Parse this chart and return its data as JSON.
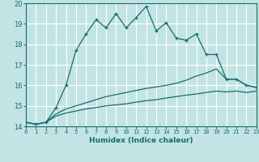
{
  "title": "",
  "xlabel": "Humidex (Indice chaleur)",
  "xlim": [
    0,
    23
  ],
  "ylim": [
    14,
    20
  ],
  "xticks": [
    0,
    1,
    2,
    3,
    4,
    5,
    6,
    7,
    8,
    9,
    10,
    11,
    12,
    13,
    14,
    15,
    16,
    17,
    18,
    19,
    20,
    21,
    22,
    23
  ],
  "yticks": [
    14,
    15,
    16,
    17,
    18,
    19,
    20
  ],
  "bg_color": "#c2e4e4",
  "line_color": "#1a6b6b",
  "grid_color": "#ffffff",
  "line1_y": [
    14.2,
    14.1,
    14.2,
    14.9,
    16.0,
    17.7,
    18.5,
    19.2,
    18.8,
    19.5,
    18.8,
    19.3,
    19.85,
    18.65,
    19.05,
    18.3,
    18.2,
    18.5,
    17.5,
    17.5,
    16.3,
    16.3,
    16.0,
    15.9
  ],
  "line2_y": [
    14.2,
    14.1,
    14.2,
    14.6,
    14.85,
    15.0,
    15.15,
    15.3,
    15.45,
    15.55,
    15.65,
    15.75,
    15.85,
    15.92,
    16.0,
    16.1,
    16.25,
    16.45,
    16.6,
    16.8,
    16.3,
    16.3,
    16.0,
    15.9
  ],
  "line3_y": [
    14.2,
    14.1,
    14.2,
    14.5,
    14.65,
    14.75,
    14.85,
    14.92,
    15.0,
    15.05,
    15.1,
    15.18,
    15.25,
    15.3,
    15.38,
    15.45,
    15.52,
    15.58,
    15.65,
    15.72,
    15.68,
    15.72,
    15.65,
    15.72
  ]
}
